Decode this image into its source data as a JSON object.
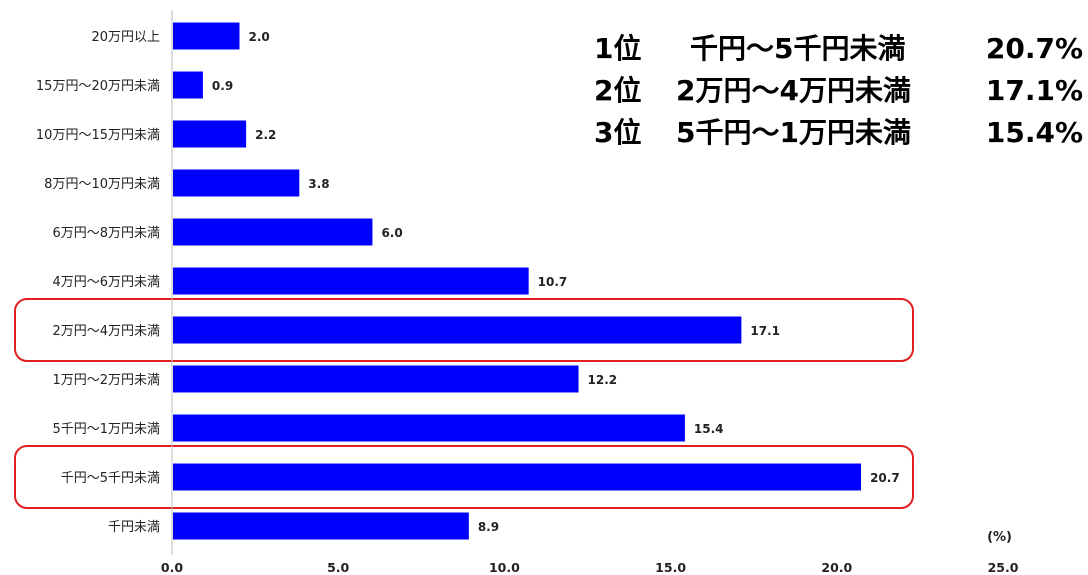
{
  "chart_data": {
    "type": "bar",
    "orientation": "horizontal",
    "categories": [
      "20万円以上",
      "15万円～20万円未満",
      "10万円～15万円未満",
      "8万円～10万円未満",
      "6万円～8万円未満",
      "4万円～6万円未満",
      "2万円～4万円未満",
      "1万円～2万円未満",
      "5千円～1万円未満",
      "千円～5千円未満",
      "千円未満"
    ],
    "values": [
      2.0,
      0.9,
      2.2,
      3.8,
      6.0,
      10.7,
      17.1,
      12.2,
      15.4,
      20.7,
      8.9
    ],
    "value_labels": [
      "2.0",
      "0.9",
      "2.2",
      "3.8",
      "6.0",
      "10.7",
      "17.1",
      "12.2",
      "15.4",
      "20.7",
      "8.9"
    ],
    "xlim": [
      0,
      25
    ],
    "x_ticks": [
      "0.0",
      "5.0",
      "10.0",
      "15.0",
      "20.0",
      "25.0"
    ],
    "unit": "(%)",
    "grid": false,
    "highlighted": [
      "2万円～4万円未満",
      "千円～5千円未満"
    ],
    "colors": {
      "bar": "#0000ff",
      "highlight": "#e02020",
      "axis": "#bbbbbb"
    }
  },
  "rankings": [
    {
      "rank": "1位",
      "range": "千円～5千円未満",
      "value": "20.7%"
    },
    {
      "rank": "2位",
      "range": "2万円～4万円未満",
      "value": "17.1%"
    },
    {
      "rank": "3位",
      "range": "5千円～1万円未満",
      "value": "15.4%"
    }
  ]
}
